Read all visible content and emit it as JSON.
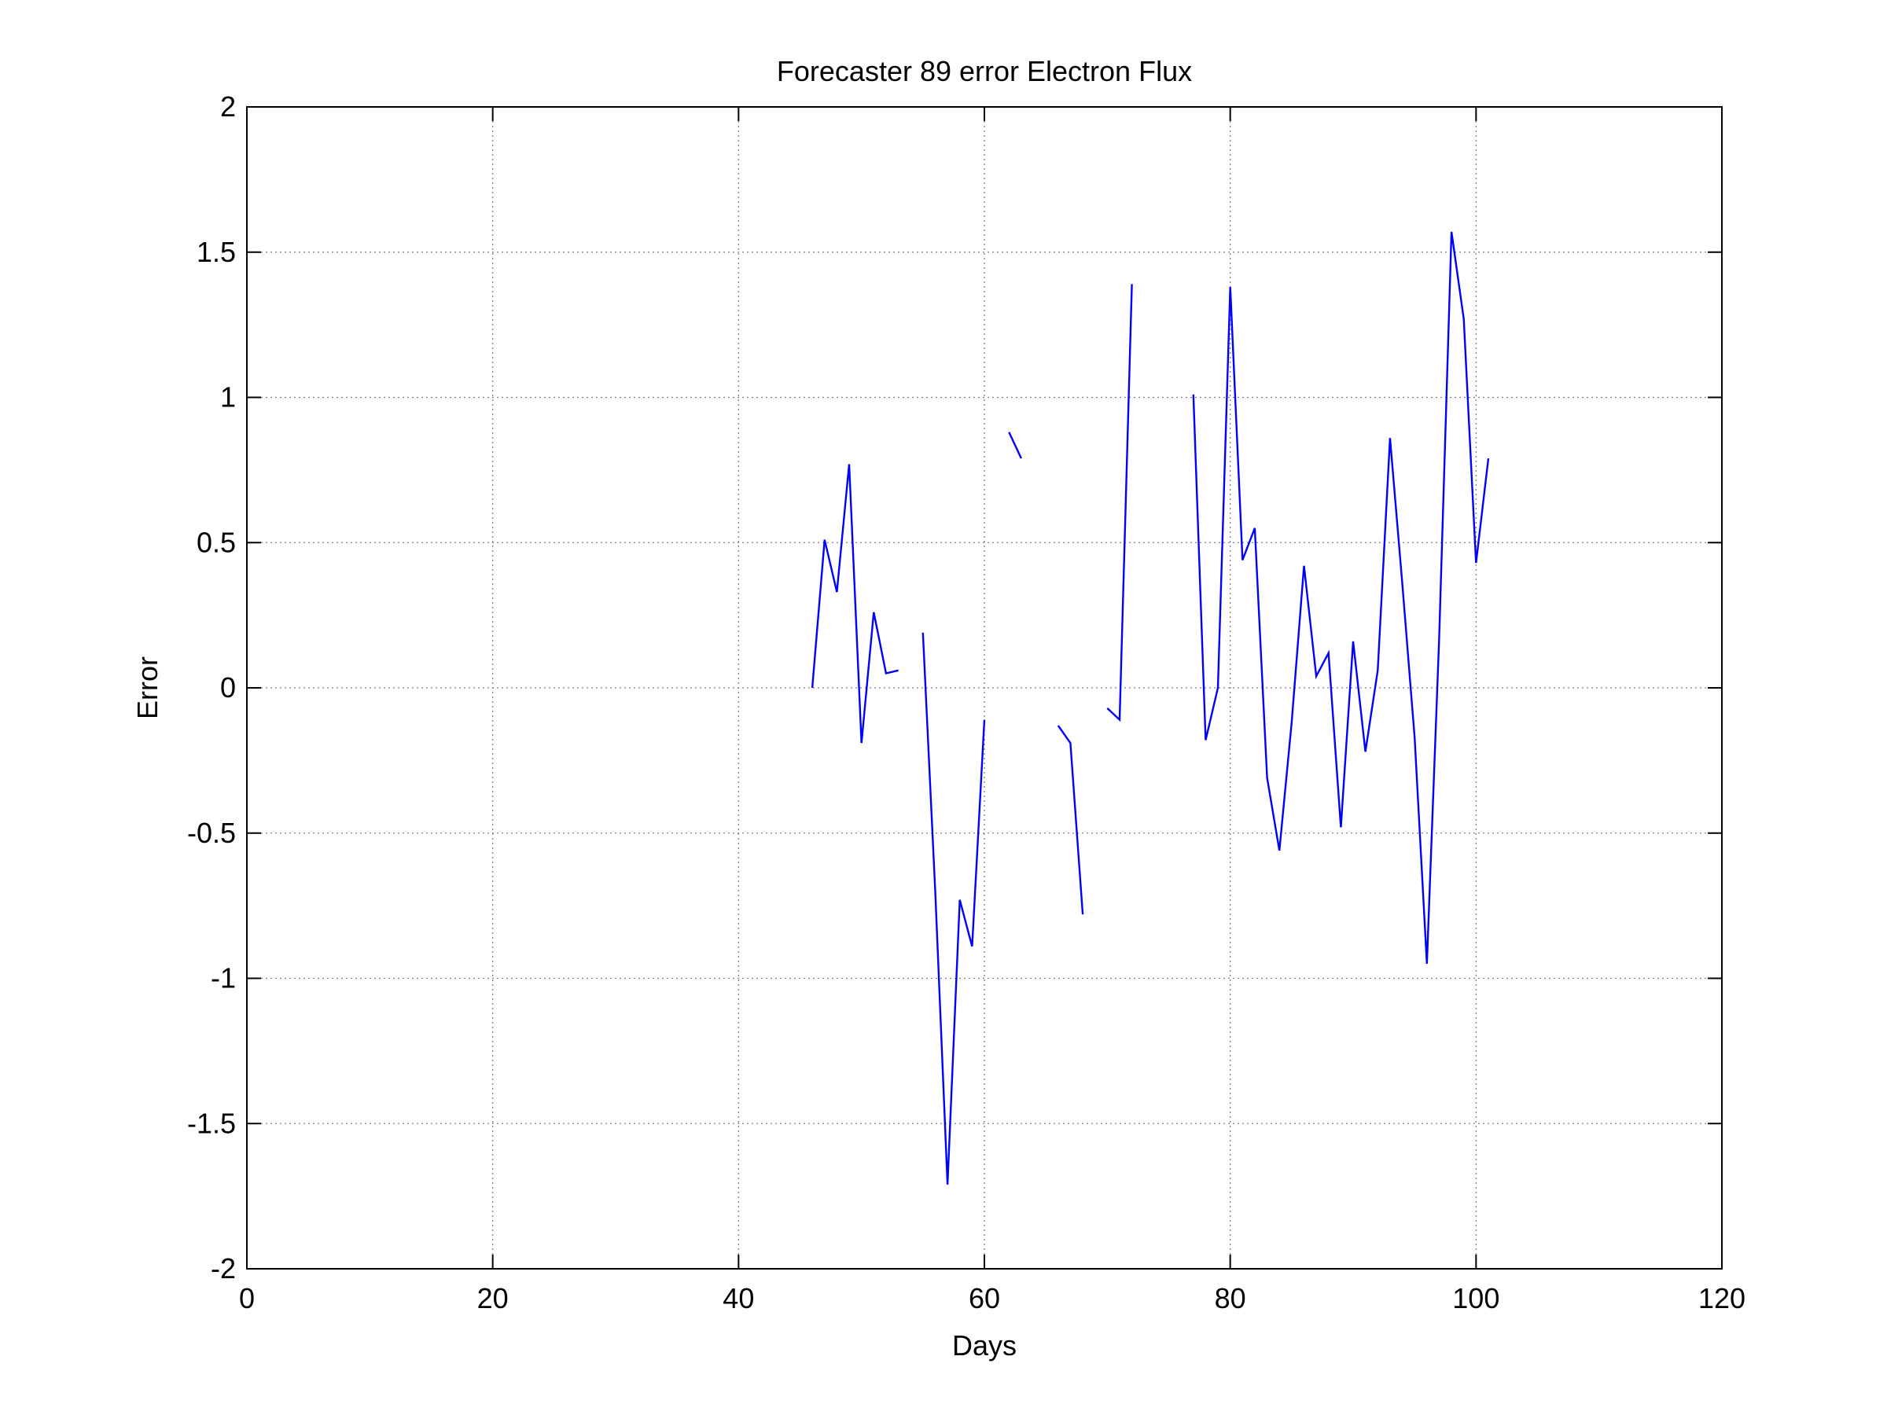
{
  "chart_data": {
    "type": "line",
    "title": "Forecaster 89 error  Electron Flux",
    "xlabel": "Days",
    "ylabel": "Error",
    "xlim": [
      0,
      120
    ],
    "ylim": [
      -2,
      2
    ],
    "xticks": [
      0,
      20,
      40,
      60,
      80,
      100,
      120
    ],
    "yticks": [
      -2,
      -1.5,
      -1,
      -0.5,
      0,
      0.5,
      1,
      1.5,
      2
    ],
    "xtick_labels": [
      "0",
      "20",
      "40",
      "60",
      "80",
      "100",
      "120"
    ],
    "ytick_labels": [
      "-2",
      "-1.5",
      "-1",
      "-0.5",
      "0",
      "0.5",
      "1",
      "1.5",
      "2"
    ],
    "grid": true,
    "line_color": "#0000ff",
    "series": [
      {
        "x": [
          46,
          47,
          48,
          49,
          50,
          51,
          52,
          53,
          54,
          55,
          56,
          57,
          58,
          59,
          60,
          61,
          62,
          63,
          64,
          65,
          66,
          67,
          68,
          69,
          70,
          71,
          72,
          73,
          74,
          75,
          76,
          77,
          78,
          79,
          80,
          81,
          82,
          83,
          84,
          85,
          86,
          87,
          88,
          89,
          90,
          91,
          92,
          93,
          94,
          95,
          96,
          97,
          98,
          99,
          100,
          101
        ],
        "y": [
          0.0,
          0.51,
          0.33,
          0.77,
          -0.19,
          0.26,
          0.05,
          0.06,
          null,
          0.19,
          -0.7,
          -1.71,
          -0.73,
          -0.89,
          -0.11,
          null,
          0.88,
          0.79,
          null,
          null,
          -0.13,
          -0.19,
          -0.78,
          null,
          -0.07,
          -0.11,
          1.39,
          null,
          null,
          null,
          null,
          1.01,
          -0.18,
          0.0,
          1.38,
          0.44,
          0.55,
          -0.31,
          -0.56,
          -0.12,
          0.42,
          0.04,
          0.12,
          -0.48,
          0.16,
          -0.22,
          0.06,
          0.86,
          0.36,
          -0.17,
          -0.95,
          0.17,
          1.57,
          1.27,
          0.43,
          0.79
        ]
      }
    ]
  }
}
